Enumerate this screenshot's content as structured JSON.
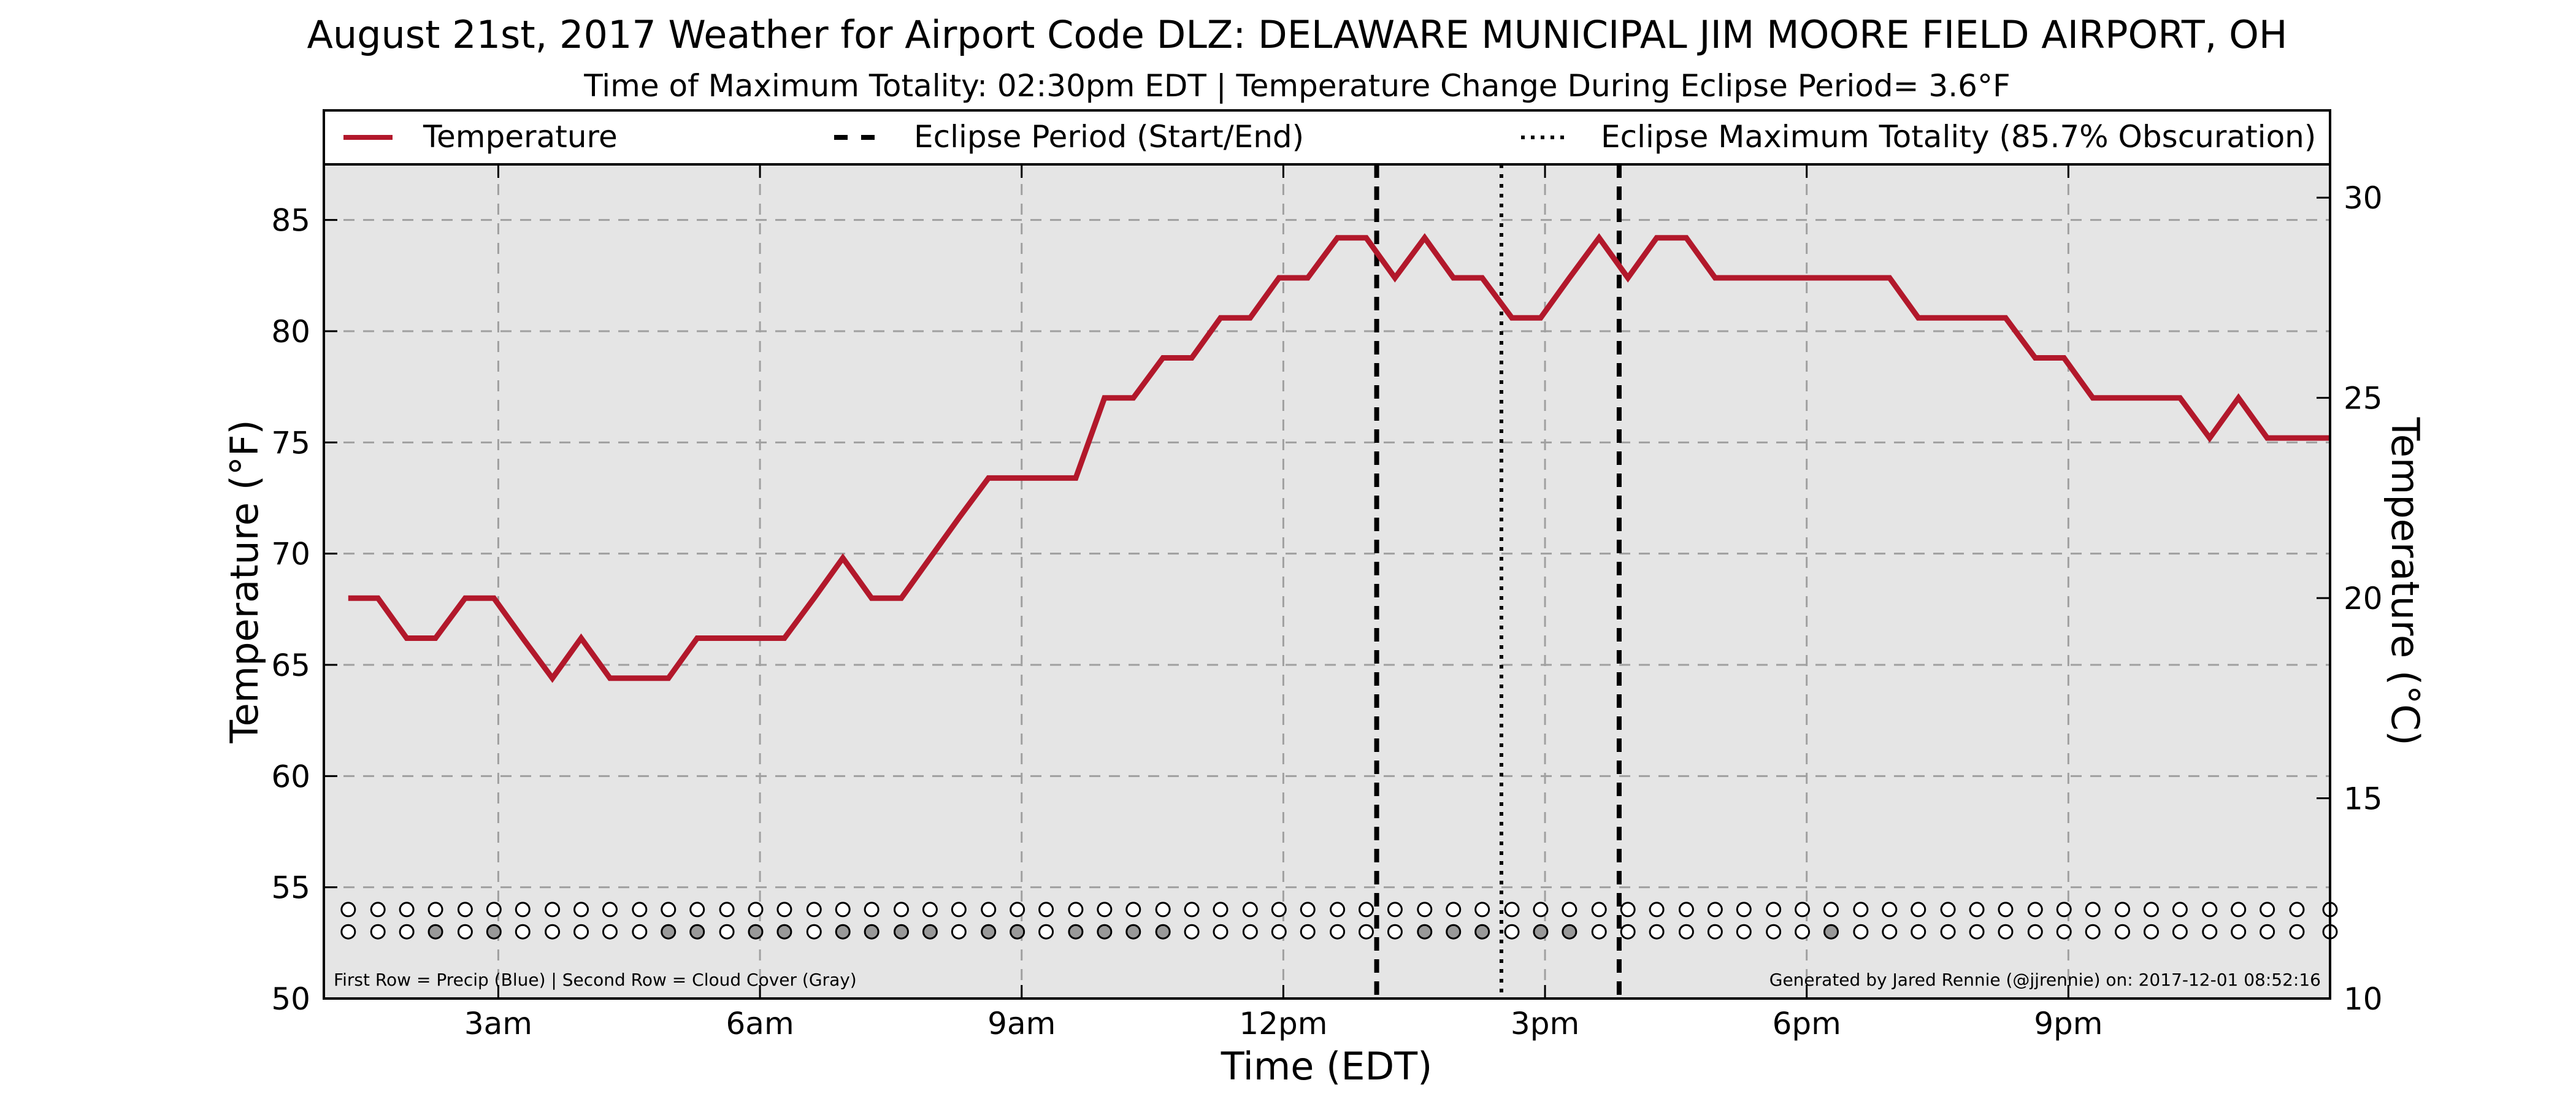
{
  "chart_data": {
    "type": "line",
    "title": "August 21st, 2017 Weather for Airport Code DLZ: DELAWARE MUNICIPAL JIM MOORE FIELD AIRPORT, OH",
    "subtitle": "Time of Maximum Totality: 02:30pm EDT | Temperature Change During Eclipse Period= 3.6°F",
    "xlabel": "Time (EDT)",
    "ylabel": "Temperature (°F)",
    "y2label": "Temperature (°C)",
    "xlim": [
      1.0,
      24.0
    ],
    "ylim": [
      50,
      87.5
    ],
    "y2lim": [
      10,
      30.83
    ],
    "xticks": [
      {
        "x": 3,
        "label": "3am"
      },
      {
        "x": 6,
        "label": "6am"
      },
      {
        "x": 9,
        "label": "9am"
      },
      {
        "x": 12,
        "label": "12pm"
      },
      {
        "x": 15,
        "label": "3pm"
      },
      {
        "x": 18,
        "label": "6pm"
      },
      {
        "x": 21,
        "label": "9pm"
      }
    ],
    "yticks": [
      50,
      55,
      60,
      65,
      70,
      75,
      80,
      85
    ],
    "y2ticks": [
      10,
      15,
      20,
      25,
      30
    ],
    "grid": true,
    "legend": {
      "placement": "top",
      "entries": [
        {
          "label": "Temperature",
          "style": "solid",
          "color": "#b2182b"
        },
        {
          "label": "Eclipse Period (Start/End)",
          "style": "dashed",
          "color": "#000000"
        },
        {
          "label": "Eclipse Maximum Totality (85.7% Obscuration)",
          "style": "dotted",
          "color": "#000000"
        }
      ]
    },
    "series": [
      {
        "name": "Temperature",
        "color": "#b2182b",
        "x": [
          1.28,
          1.62,
          1.95,
          2.28,
          2.62,
          2.95,
          3.28,
          3.62,
          3.95,
          4.28,
          4.62,
          4.95,
          5.28,
          5.62,
          5.95,
          6.28,
          6.62,
          6.95,
          7.28,
          7.62,
          7.95,
          8.28,
          8.62,
          8.95,
          9.28,
          9.62,
          9.95,
          10.28,
          10.62,
          10.95,
          11.28,
          11.62,
          11.95,
          12.28,
          12.62,
          12.95,
          13.28,
          13.62,
          13.95,
          14.28,
          14.62,
          14.95,
          15.28,
          15.62,
          15.95,
          16.28,
          16.62,
          16.95,
          17.28,
          17.62,
          17.95,
          18.28,
          18.62,
          18.95,
          19.28,
          19.62,
          19.95,
          20.28,
          20.62,
          20.95,
          21.28,
          21.62,
          21.95,
          22.28,
          22.62,
          22.95,
          23.28,
          23.62,
          24.0
        ],
        "y": [
          68.0,
          68.0,
          66.2,
          66.2,
          68.0,
          68.0,
          66.2,
          64.4,
          66.2,
          64.4,
          64.4,
          64.4,
          66.2,
          66.2,
          66.2,
          66.2,
          68.0,
          69.8,
          68.0,
          68.0,
          69.8,
          71.6,
          73.4,
          73.4,
          73.4,
          73.4,
          77.0,
          77.0,
          78.8,
          78.8,
          80.6,
          80.6,
          82.4,
          82.4,
          84.2,
          84.2,
          82.4,
          84.2,
          82.4,
          82.4,
          80.6,
          80.6,
          82.4,
          84.2,
          82.4,
          84.2,
          84.2,
          82.4,
          82.4,
          82.4,
          82.4,
          82.4,
          82.4,
          82.4,
          80.6,
          80.6,
          80.6,
          80.6,
          78.8,
          78.8,
          77.0,
          77.0,
          77.0,
          77.0,
          75.2,
          77.0,
          75.2,
          75.2,
          75.2
        ]
      }
    ],
    "eclipse_start": 13.07,
    "eclipse_max": 14.5,
    "eclipse_end": 15.85,
    "markers": {
      "precip_row_y": 54.0,
      "cloud_row_y": 53.0,
      "x": [
        1.28,
        1.62,
        1.95,
        2.28,
        2.62,
        2.95,
        3.28,
        3.62,
        3.95,
        4.28,
        4.62,
        4.95,
        5.28,
        5.62,
        5.95,
        6.28,
        6.62,
        6.95,
        7.28,
        7.62,
        7.95,
        8.28,
        8.62,
        8.95,
        9.28,
        9.62,
        9.95,
        10.28,
        10.62,
        10.95,
        11.28,
        11.62,
        11.95,
        12.28,
        12.62,
        12.95,
        13.28,
        13.62,
        13.95,
        14.28,
        14.62,
        14.95,
        15.28,
        15.62,
        15.95,
        16.28,
        16.62,
        16.95,
        17.28,
        17.62,
        17.95,
        18.28,
        18.62,
        18.95,
        19.28,
        19.62,
        19.95,
        20.28,
        20.62,
        20.95,
        21.28,
        21.62,
        21.95,
        22.28,
        22.62,
        22.95,
        23.28,
        23.62,
        24.0
      ],
      "cloud_gray": [
        false,
        false,
        false,
        true,
        false,
        true,
        false,
        false,
        false,
        false,
        false,
        true,
        true,
        false,
        true,
        true,
        false,
        true,
        true,
        true,
        true,
        false,
        true,
        true,
        false,
        true,
        true,
        true,
        true,
        false,
        false,
        false,
        false,
        false,
        false,
        false,
        false,
        true,
        true,
        true,
        false,
        true,
        true,
        false,
        false,
        false,
        false,
        false,
        false,
        false,
        false,
        true,
        false,
        false,
        false,
        false,
        false,
        false,
        false,
        false,
        false,
        false,
        false,
        false,
        false,
        false,
        false,
        false,
        false
      ],
      "precip_blue": []
    },
    "colors": {
      "plot_background": "#e5e5e5",
      "marker_gray": "#999999",
      "marker_blue": "#3366cc"
    },
    "footnote_left": "First Row = Precip (Blue) | Second Row = Cloud Cover (Gray)",
    "footnote_right": "Generated by Jared Rennie (@jjrennie) on: 2017-12-01 08:52:16"
  }
}
